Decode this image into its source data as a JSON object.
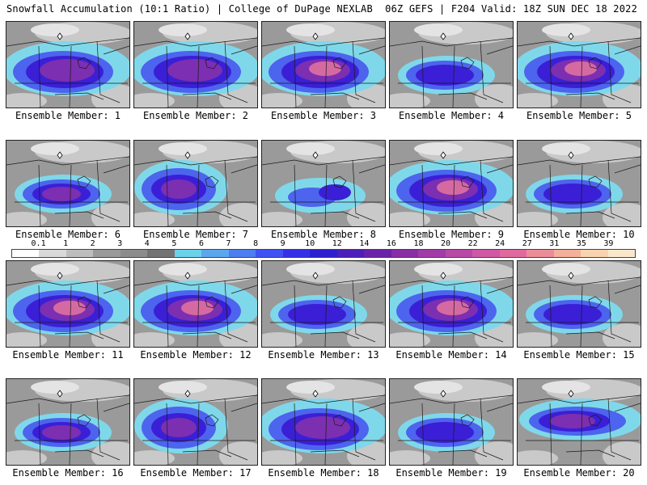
{
  "header": {
    "title_left": "Snowfall Accumulation (10:1 Ratio) | College of DuPage NEXLAB",
    "title_right": "06Z GEFS | F204 Valid: 18Z SUN DEC 18 2022"
  },
  "colorbar": {
    "levels": [
      "0.1",
      "1",
      "2",
      "3",
      "4",
      "5",
      "6",
      "7",
      "8",
      "9",
      "10",
      "12",
      "14",
      "16",
      "18",
      "20",
      "22",
      "24",
      "27",
      "31",
      "35",
      "39"
    ],
    "colors": [
      "#ffffff",
      "#d9d9d9",
      "#bdbdbd",
      "#9a9a9a",
      "#8c8c8c",
      "#737373",
      "#6bd2ea",
      "#5aa7ee",
      "#4e7df0",
      "#3f52f2",
      "#3530e8",
      "#2b1fd0",
      "#4b1fb8",
      "#6a22a8",
      "#8a2ea6",
      "#a13ba8",
      "#b84aa6",
      "#cf59a4",
      "#e06a9e",
      "#ec8c98",
      "#f3b09a",
      "#f7d3b0",
      "#fae8cc"
    ]
  },
  "palette": {
    "bg": "#9a9a9a",
    "light": "#c9c9c9",
    "pale": "#e4e4e4",
    "white": "#fbfbfb",
    "cyan": "#7fd8ea",
    "blue": "#4d64ee",
    "deep": "#3a1fd6",
    "purple": "#7c2fb0",
    "violet": "#9c46b8",
    "pink": "#d56aa2",
    "peach": "#f2c4a8",
    "border": "#1a1a1a"
  },
  "panels": [
    {
      "label": "Ensemble Member: 1",
      "intensity": 2,
      "snow_area": "full"
    },
    {
      "label": "Ensemble Member: 2",
      "intensity": 2,
      "snow_area": "full"
    },
    {
      "label": "Ensemble Member: 3",
      "intensity": 3,
      "snow_area": "full"
    },
    {
      "label": "Ensemble Member: 4",
      "intensity": 1,
      "snow_area": "central"
    },
    {
      "label": "Ensemble Member: 5",
      "intensity": 4,
      "snow_area": "full"
    },
    {
      "label": "Ensemble Member: 6",
      "intensity": 2,
      "snow_area": "central"
    },
    {
      "label": "Ensemble Member: 7",
      "intensity": 2,
      "snow_area": "west"
    },
    {
      "label": "Ensemble Member: 8",
      "intensity": 1,
      "snow_area": "scattered"
    },
    {
      "label": "Ensemble Member: 9",
      "intensity": 3,
      "snow_area": "full"
    },
    {
      "label": "Ensemble Member: 10",
      "intensity": 1,
      "snow_area": "central"
    },
    {
      "label": "Ensemble Member: 11",
      "intensity": 4,
      "snow_area": "full"
    },
    {
      "label": "Ensemble Member: 12",
      "intensity": 3,
      "snow_area": "full"
    },
    {
      "label": "Ensemble Member: 13",
      "intensity": 1,
      "snow_area": "central"
    },
    {
      "label": "Ensemble Member: 14",
      "intensity": 3,
      "snow_area": "full"
    },
    {
      "label": "Ensemble Member: 15",
      "intensity": 1,
      "snow_area": "central"
    },
    {
      "label": "Ensemble Member: 16",
      "intensity": 2,
      "snow_area": "central"
    },
    {
      "label": "Ensemble Member: 17",
      "intensity": 2,
      "snow_area": "west"
    },
    {
      "label": "Ensemble Member: 18",
      "intensity": 2,
      "snow_area": "full"
    },
    {
      "label": "Ensemble Member: 19",
      "intensity": 1,
      "snow_area": "central"
    },
    {
      "label": "Ensemble Member: 20",
      "intensity": 2,
      "snow_area": "north"
    }
  ]
}
